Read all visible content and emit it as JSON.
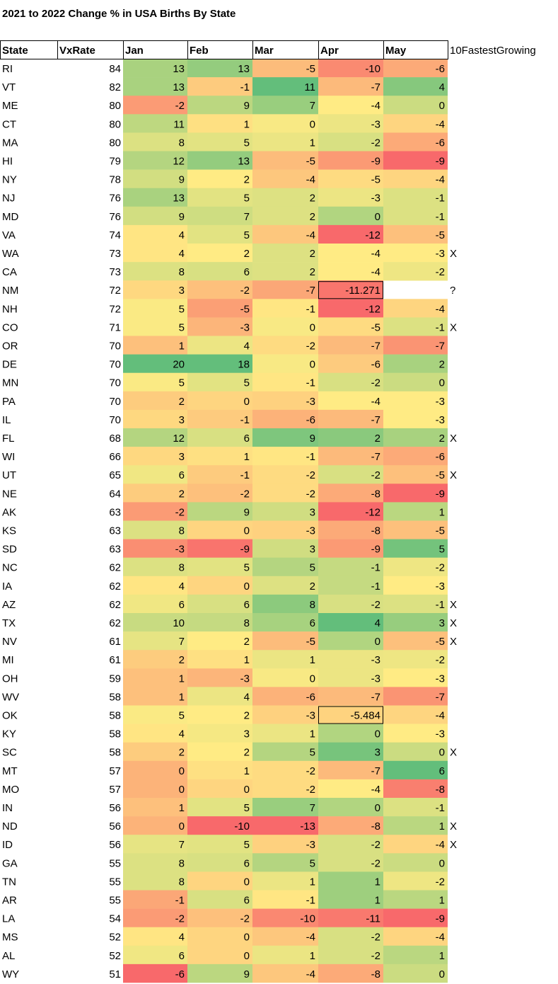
{
  "title": "2021 to 2022 Change % in USA Births By State",
  "headers": [
    "State",
    "VxRate",
    "Jan",
    "Feb",
    "Mar",
    "Apr",
    "May",
    "10FastestGrowing"
  ],
  "rows": [
    {
      "state": "RI",
      "vx": "84",
      "v": [
        "13",
        "13",
        "-5",
        "-10",
        "-6"
      ],
      "flag": ""
    },
    {
      "state": "VT",
      "vx": "82",
      "v": [
        "13",
        "-1",
        "11",
        "-7",
        "4"
      ],
      "flag": ""
    },
    {
      "state": "ME",
      "vx": "80",
      "v": [
        "-2",
        "9",
        "7",
        "-4",
        "0"
      ],
      "flag": ""
    },
    {
      "state": "CT",
      "vx": "80",
      "v": [
        "11",
        "1",
        "0",
        "-3",
        "-4"
      ],
      "flag": ""
    },
    {
      "state": "MA",
      "vx": "80",
      "v": [
        "8",
        "5",
        "1",
        "-2",
        "-6"
      ],
      "flag": ""
    },
    {
      "state": "HI",
      "vx": "79",
      "v": [
        "12",
        "13",
        "-5",
        "-9",
        "-9"
      ],
      "flag": ""
    },
    {
      "state": "NY",
      "vx": "78",
      "v": [
        "9",
        "2",
        "-4",
        "-5",
        "-4"
      ],
      "flag": ""
    },
    {
      "state": "NJ",
      "vx": "76",
      "v": [
        "13",
        "5",
        "2",
        "-3",
        "-1"
      ],
      "flag": ""
    },
    {
      "state": "MD",
      "vx": "76",
      "v": [
        "9",
        "7",
        "2",
        "0",
        "-1"
      ],
      "flag": ""
    },
    {
      "state": "VA",
      "vx": "74",
      "v": [
        "4",
        "5",
        "-4",
        "-12",
        "-5"
      ],
      "flag": ""
    },
    {
      "state": "WA",
      "vx": "73",
      "v": [
        "4",
        "2",
        "2",
        "-4",
        "-3"
      ],
      "flag": "X"
    },
    {
      "state": "CA",
      "vx": "73",
      "v": [
        "8",
        "6",
        "2",
        "-4",
        "-2"
      ],
      "flag": ""
    },
    {
      "state": "NM",
      "vx": "72",
      "v": [
        "3",
        "-2",
        "-7",
        "-11.271",
        ""
      ],
      "flag": "?"
    },
    {
      "state": "NH",
      "vx": "72",
      "v": [
        "5",
        "-5",
        "-1",
        "-12",
        "-4"
      ],
      "flag": ""
    },
    {
      "state": "CO",
      "vx": "71",
      "v": [
        "5",
        "-3",
        "0",
        "-5",
        "-1"
      ],
      "flag": "X"
    },
    {
      "state": "OR",
      "vx": "70",
      "v": [
        "1",
        "4",
        "-2",
        "-7",
        "-7"
      ],
      "flag": ""
    },
    {
      "state": "DE",
      "vx": "70",
      "v": [
        "20",
        "18",
        "0",
        "-6",
        "2"
      ],
      "flag": ""
    },
    {
      "state": "MN",
      "vx": "70",
      "v": [
        "5",
        "5",
        "-1",
        "-2",
        "0"
      ],
      "flag": ""
    },
    {
      "state": "PA",
      "vx": "70",
      "v": [
        "2",
        "0",
        "-3",
        "-4",
        "-3"
      ],
      "flag": ""
    },
    {
      "state": "IL",
      "vx": "70",
      "v": [
        "3",
        "-1",
        "-6",
        "-7",
        "-3"
      ],
      "flag": ""
    },
    {
      "state": "FL",
      "vx": "68",
      "v": [
        "12",
        "6",
        "9",
        "2",
        "2"
      ],
      "flag": "X"
    },
    {
      "state": "WI",
      "vx": "66",
      "v": [
        "3",
        "1",
        "-1",
        "-7",
        "-6"
      ],
      "flag": ""
    },
    {
      "state": "UT",
      "vx": "65",
      "v": [
        "6",
        "-1",
        "-2",
        "-2",
        "-5"
      ],
      "flag": "X"
    },
    {
      "state": "NE",
      "vx": "64",
      "v": [
        "2",
        "-2",
        "-2",
        "-8",
        "-9"
      ],
      "flag": ""
    },
    {
      "state": "AK",
      "vx": "63",
      "v": [
        "-2",
        "9",
        "3",
        "-12",
        "1"
      ],
      "flag": ""
    },
    {
      "state": "KS",
      "vx": "63",
      "v": [
        "8",
        "0",
        "-3",
        "-8",
        "-5"
      ],
      "flag": ""
    },
    {
      "state": "SD",
      "vx": "63",
      "v": [
        "-3",
        "-9",
        "3",
        "-9",
        "5"
      ],
      "flag": ""
    },
    {
      "state": "NC",
      "vx": "62",
      "v": [
        "8",
        "5",
        "5",
        "-1",
        "-2"
      ],
      "flag": ""
    },
    {
      "state": "IA",
      "vx": "62",
      "v": [
        "4",
        "0",
        "2",
        "-1",
        "-3"
      ],
      "flag": ""
    },
    {
      "state": "AZ",
      "vx": "62",
      "v": [
        "6",
        "6",
        "8",
        "-2",
        "-1"
      ],
      "flag": "X"
    },
    {
      "state": "TX",
      "vx": "62",
      "v": [
        "10",
        "8",
        "6",
        "4",
        "3"
      ],
      "flag": "X"
    },
    {
      "state": "NV",
      "vx": "61",
      "v": [
        "7",
        "2",
        "-5",
        "0",
        "-5"
      ],
      "flag": "X"
    },
    {
      "state": "MI",
      "vx": "61",
      "v": [
        "2",
        "1",
        "1",
        "-3",
        "-2"
      ],
      "flag": ""
    },
    {
      "state": "OH",
      "vx": "59",
      "v": [
        "1",
        "-3",
        "0",
        "-3",
        "-3"
      ],
      "flag": ""
    },
    {
      "state": "WV",
      "vx": "58",
      "v": [
        "1",
        "4",
        "-6",
        "-7",
        "-7"
      ],
      "flag": ""
    },
    {
      "state": "OK",
      "vx": "58",
      "v": [
        "5",
        "2",
        "-3",
        "-5.484",
        "-4"
      ],
      "flag": ""
    },
    {
      "state": "KY",
      "vx": "58",
      "v": [
        "4",
        "3",
        "1",
        "0",
        "-3"
      ],
      "flag": ""
    },
    {
      "state": "SC",
      "vx": "58",
      "v": [
        "2",
        "2",
        "5",
        "3",
        "0"
      ],
      "flag": "X"
    },
    {
      "state": "MT",
      "vx": "57",
      "v": [
        "0",
        "1",
        "-2",
        "-7",
        "6"
      ],
      "flag": ""
    },
    {
      "state": "MO",
      "vx": "57",
      "v": [
        "0",
        "0",
        "-2",
        "-4",
        "-8"
      ],
      "flag": ""
    },
    {
      "state": "IN",
      "vx": "56",
      "v": [
        "1",
        "5",
        "7",
        "0",
        "-1"
      ],
      "flag": ""
    },
    {
      "state": "ND",
      "vx": "56",
      "v": [
        "0",
        "-10",
        "-13",
        "-8",
        "1"
      ],
      "flag": "X"
    },
    {
      "state": "ID",
      "vx": "56",
      "v": [
        "7",
        "5",
        "-3",
        "-2",
        "-4"
      ],
      "flag": "X"
    },
    {
      "state": "GA",
      "vx": "55",
      "v": [
        "8",
        "6",
        "5",
        "-2",
        "0"
      ],
      "flag": ""
    },
    {
      "state": "TN",
      "vx": "55",
      "v": [
        "8",
        "0",
        "1",
        "1",
        "-2"
      ],
      "flag": ""
    },
    {
      "state": "AR",
      "vx": "55",
      "v": [
        "-1",
        "6",
        "-1",
        "1",
        "1"
      ],
      "flag": ""
    },
    {
      "state": "LA",
      "vx": "54",
      "v": [
        "-2",
        "-2",
        "-10",
        "-11",
        "-9"
      ],
      "flag": ""
    },
    {
      "state": "MS",
      "vx": "52",
      "v": [
        "4",
        "0",
        "-4",
        "-2",
        "-4"
      ],
      "flag": ""
    },
    {
      "state": "AL",
      "vx": "52",
      "v": [
        "6",
        "0",
        "1",
        "-2",
        "1"
      ],
      "flag": ""
    },
    {
      "state": "WY",
      "vx": "51",
      "v": [
        "-6",
        "9",
        "-4",
        "-8",
        "0"
      ],
      "flag": ""
    }
  ],
  "chart_data": {
    "type": "heatmap",
    "title": "2021 to 2022 Change % in USA Births By State",
    "x": [
      "Jan",
      "Feb",
      "Mar",
      "Apr",
      "May"
    ],
    "y": [
      "RI",
      "VT",
      "ME",
      "CT",
      "MA",
      "HI",
      "NY",
      "NJ",
      "MD",
      "VA",
      "WA",
      "CA",
      "NM",
      "NH",
      "CO",
      "OR",
      "DE",
      "MN",
      "PA",
      "IL",
      "FL",
      "WI",
      "UT",
      "NE",
      "AK",
      "KS",
      "SD",
      "NC",
      "IA",
      "AZ",
      "TX",
      "NV",
      "MI",
      "OH",
      "WV",
      "OK",
      "KY",
      "SC",
      "MT",
      "MO",
      "IN",
      "ND",
      "ID",
      "GA",
      "TN",
      "AR",
      "LA",
      "MS",
      "AL",
      "WY"
    ],
    "color_scale": {
      "low": "#F8696B",
      "mid": "#FFEB84",
      "high": "#63BE7B"
    },
    "boxed_cells": [
      {
        "row": "NM",
        "col": "Apr"
      },
      {
        "row": "OK",
        "col": "Apr"
      }
    ]
  }
}
